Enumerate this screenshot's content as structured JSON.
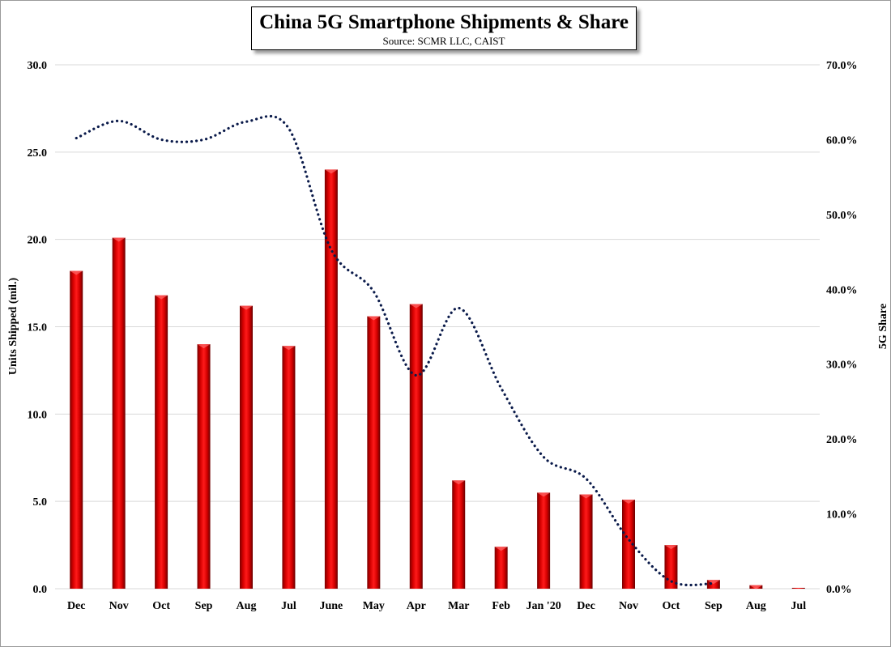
{
  "chart_data": {
    "type": "bar",
    "title": "China 5G Smartphone Shipments & Share",
    "subtitle": "Source: SCMR LLC, CAIST",
    "categories": [
      "Dec",
      "Nov",
      "Oct",
      "Sep",
      "Aug",
      "Jul",
      "June",
      "May",
      "Apr",
      "Mar",
      "Feb",
      "Jan '20",
      "Dec",
      "Nov",
      "Oct",
      "Sep",
      "Aug",
      "Jul"
    ],
    "ylabel": "Units Shipped (mil.)",
    "y2label": "5G Share",
    "ylim": [
      0,
      30
    ],
    "y2lim": [
      0,
      70
    ],
    "yticks": [
      "0.0",
      "5.0",
      "10.0",
      "15.0",
      "20.0",
      "25.0",
      "30.0"
    ],
    "y2ticks": [
      "0.0%",
      "10.0%",
      "20.0%",
      "30.0%",
      "40.0%",
      "50.0%",
      "60.0%",
      "70.0%"
    ],
    "grid": true,
    "series": [
      {
        "type": "bar",
        "axis": "left",
        "color": "#e00000",
        "values": [
          18.2,
          20.1,
          16.8,
          14.0,
          16.2,
          13.9,
          24.0,
          15.6,
          16.3,
          6.2,
          2.4,
          5.5,
          5.4,
          5.1,
          2.5,
          0.5,
          0.2,
          0.05
        ]
      },
      {
        "type": "line",
        "style": "dotted",
        "axis": "right",
        "color": "#0a1a4a",
        "values": [
          60.2,
          62.5,
          60.0,
          60.0,
          62.4,
          61.5,
          45.3,
          39.7,
          28.5,
          37.5,
          26.8,
          17.6,
          14.7,
          6.6,
          1.0,
          0.7,
          null,
          null
        ]
      }
    ]
  }
}
